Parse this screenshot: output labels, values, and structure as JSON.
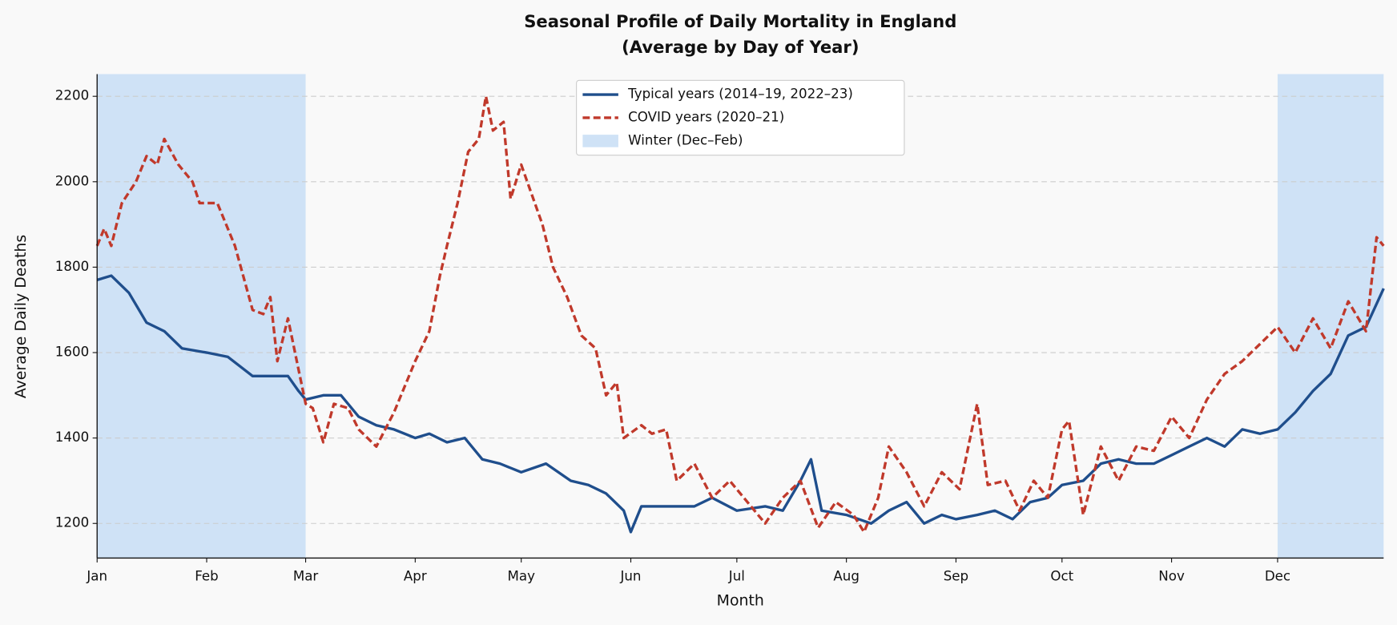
{
  "chart_data": {
    "type": "line",
    "title": [
      "Seasonal Profile of Daily Mortality in England",
      "(Average by Day of Year)"
    ],
    "xlabel": "Month",
    "ylabel": "Average Daily Deaths",
    "xlim": [
      1,
      365
    ],
    "ylim": [
      1119,
      2252
    ],
    "xticks": [
      {
        "value": 1,
        "label": "Jan"
      },
      {
        "value": 32,
        "label": "Feb"
      },
      {
        "value": 60,
        "label": "Mar"
      },
      {
        "value": 91,
        "label": "Apr"
      },
      {
        "value": 121,
        "label": "May"
      },
      {
        "value": 152,
        "label": "Jun"
      },
      {
        "value": 182,
        "label": "Jul"
      },
      {
        "value": 213,
        "label": "Aug"
      },
      {
        "value": 244,
        "label": "Sep"
      },
      {
        "value": 274,
        "label": "Oct"
      },
      {
        "value": 305,
        "label": "Nov"
      },
      {
        "value": 335,
        "label": "Dec"
      }
    ],
    "yticks": [
      1200,
      1400,
      1600,
      1800,
      2000,
      2200
    ],
    "grid": true,
    "legend": "upper center",
    "winter": {
      "name": "Winter (Dec–Feb)",
      "color": "#cfe2f6",
      "ranges": [
        [
          1,
          60
        ],
        [
          335,
          365
        ]
      ]
    },
    "series": [
      {
        "name": "Typical years (2014–19, 2022–23)",
        "color": "#1f4e8c",
        "dash": false,
        "x": [
          1,
          5,
          10,
          15,
          20,
          25,
          32,
          38,
          45,
          50,
          55,
          58,
          60,
          65,
          70,
          75,
          80,
          85,
          91,
          95,
          100,
          105,
          110,
          115,
          121,
          128,
          135,
          140,
          145,
          150,
          152,
          155,
          160,
          170,
          175,
          182,
          190,
          195,
          200,
          203,
          206,
          213,
          220,
          225,
          230,
          235,
          240,
          244,
          250,
          255,
          260,
          265,
          270,
          274,
          280,
          285,
          290,
          295,
          300,
          305,
          310,
          315,
          320,
          325,
          330,
          335,
          340,
          345,
          350,
          355,
          360,
          365
        ],
        "values": [
          1770,
          1780,
          1740,
          1670,
          1650,
          1610,
          1600,
          1590,
          1545,
          1545,
          1545,
          1510,
          1490,
          1500,
          1500,
          1450,
          1430,
          1420,
          1400,
          1410,
          1390,
          1400,
          1350,
          1340,
          1320,
          1340,
          1300,
          1290,
          1270,
          1230,
          1180,
          1240,
          1240,
          1240,
          1260,
          1230,
          1240,
          1230,
          1300,
          1350,
          1230,
          1220,
          1200,
          1230,
          1250,
          1200,
          1220,
          1210,
          1220,
          1230,
          1210,
          1250,
          1260,
          1290,
          1300,
          1340,
          1350,
          1340,
          1340,
          1360,
          1380,
          1400,
          1380,
          1420,
          1410,
          1420,
          1460,
          1510,
          1550,
          1640,
          1660,
          1750
        ]
      },
      {
        "name": "COVID years (2020–21)",
        "color": "#c0392b",
        "dash": true,
        "x": [
          1,
          3,
          5,
          8,
          12,
          15,
          18,
          20,
          24,
          28,
          30,
          35,
          40,
          45,
          48,
          50,
          52,
          55,
          58,
          60,
          62,
          65,
          68,
          72,
          75,
          80,
          85,
          88,
          91,
          95,
          98,
          100,
          103,
          106,
          109,
          111,
          113,
          116,
          118,
          121,
          124,
          127,
          130,
          134,
          138,
          142,
          145,
          148,
          150,
          155,
          158,
          162,
          165,
          170,
          175,
          180,
          185,
          190,
          195,
          200,
          205,
          210,
          215,
          218,
          222,
          225,
          230,
          235,
          240,
          245,
          250,
          253,
          258,
          262,
          266,
          270,
          274,
          276,
          280,
          285,
          290,
          295,
          300,
          305,
          310,
          315,
          320,
          325,
          330,
          335,
          340,
          345,
          350,
          355,
          360,
          363,
          365
        ],
        "values": [
          1850,
          1890,
          1850,
          1950,
          2000,
          2060,
          2040,
          2100,
          2040,
          2000,
          1950,
          1950,
          1850,
          1700,
          1690,
          1730,
          1580,
          1680,
          1560,
          1480,
          1470,
          1390,
          1480,
          1470,
          1420,
          1380,
          1460,
          1520,
          1580,
          1650,
          1780,
          1850,
          1950,
          2070,
          2100,
          2200,
          2120,
          2140,
          1960,
          2040,
          1970,
          1900,
          1800,
          1730,
          1640,
          1610,
          1500,
          1530,
          1400,
          1430,
          1410,
          1420,
          1300,
          1340,
          1260,
          1300,
          1250,
          1200,
          1260,
          1300,
          1190,
          1250,
          1220,
          1180,
          1260,
          1380,
          1320,
          1240,
          1320,
          1280,
          1480,
          1290,
          1300,
          1230,
          1300,
          1260,
          1420,
          1440,
          1220,
          1380,
          1300,
          1380,
          1370,
          1450,
          1400,
          1490,
          1550,
          1580,
          1620,
          1660,
          1600,
          1680,
          1610,
          1720,
          1650,
          1870,
          1850
        ]
      }
    ]
  }
}
